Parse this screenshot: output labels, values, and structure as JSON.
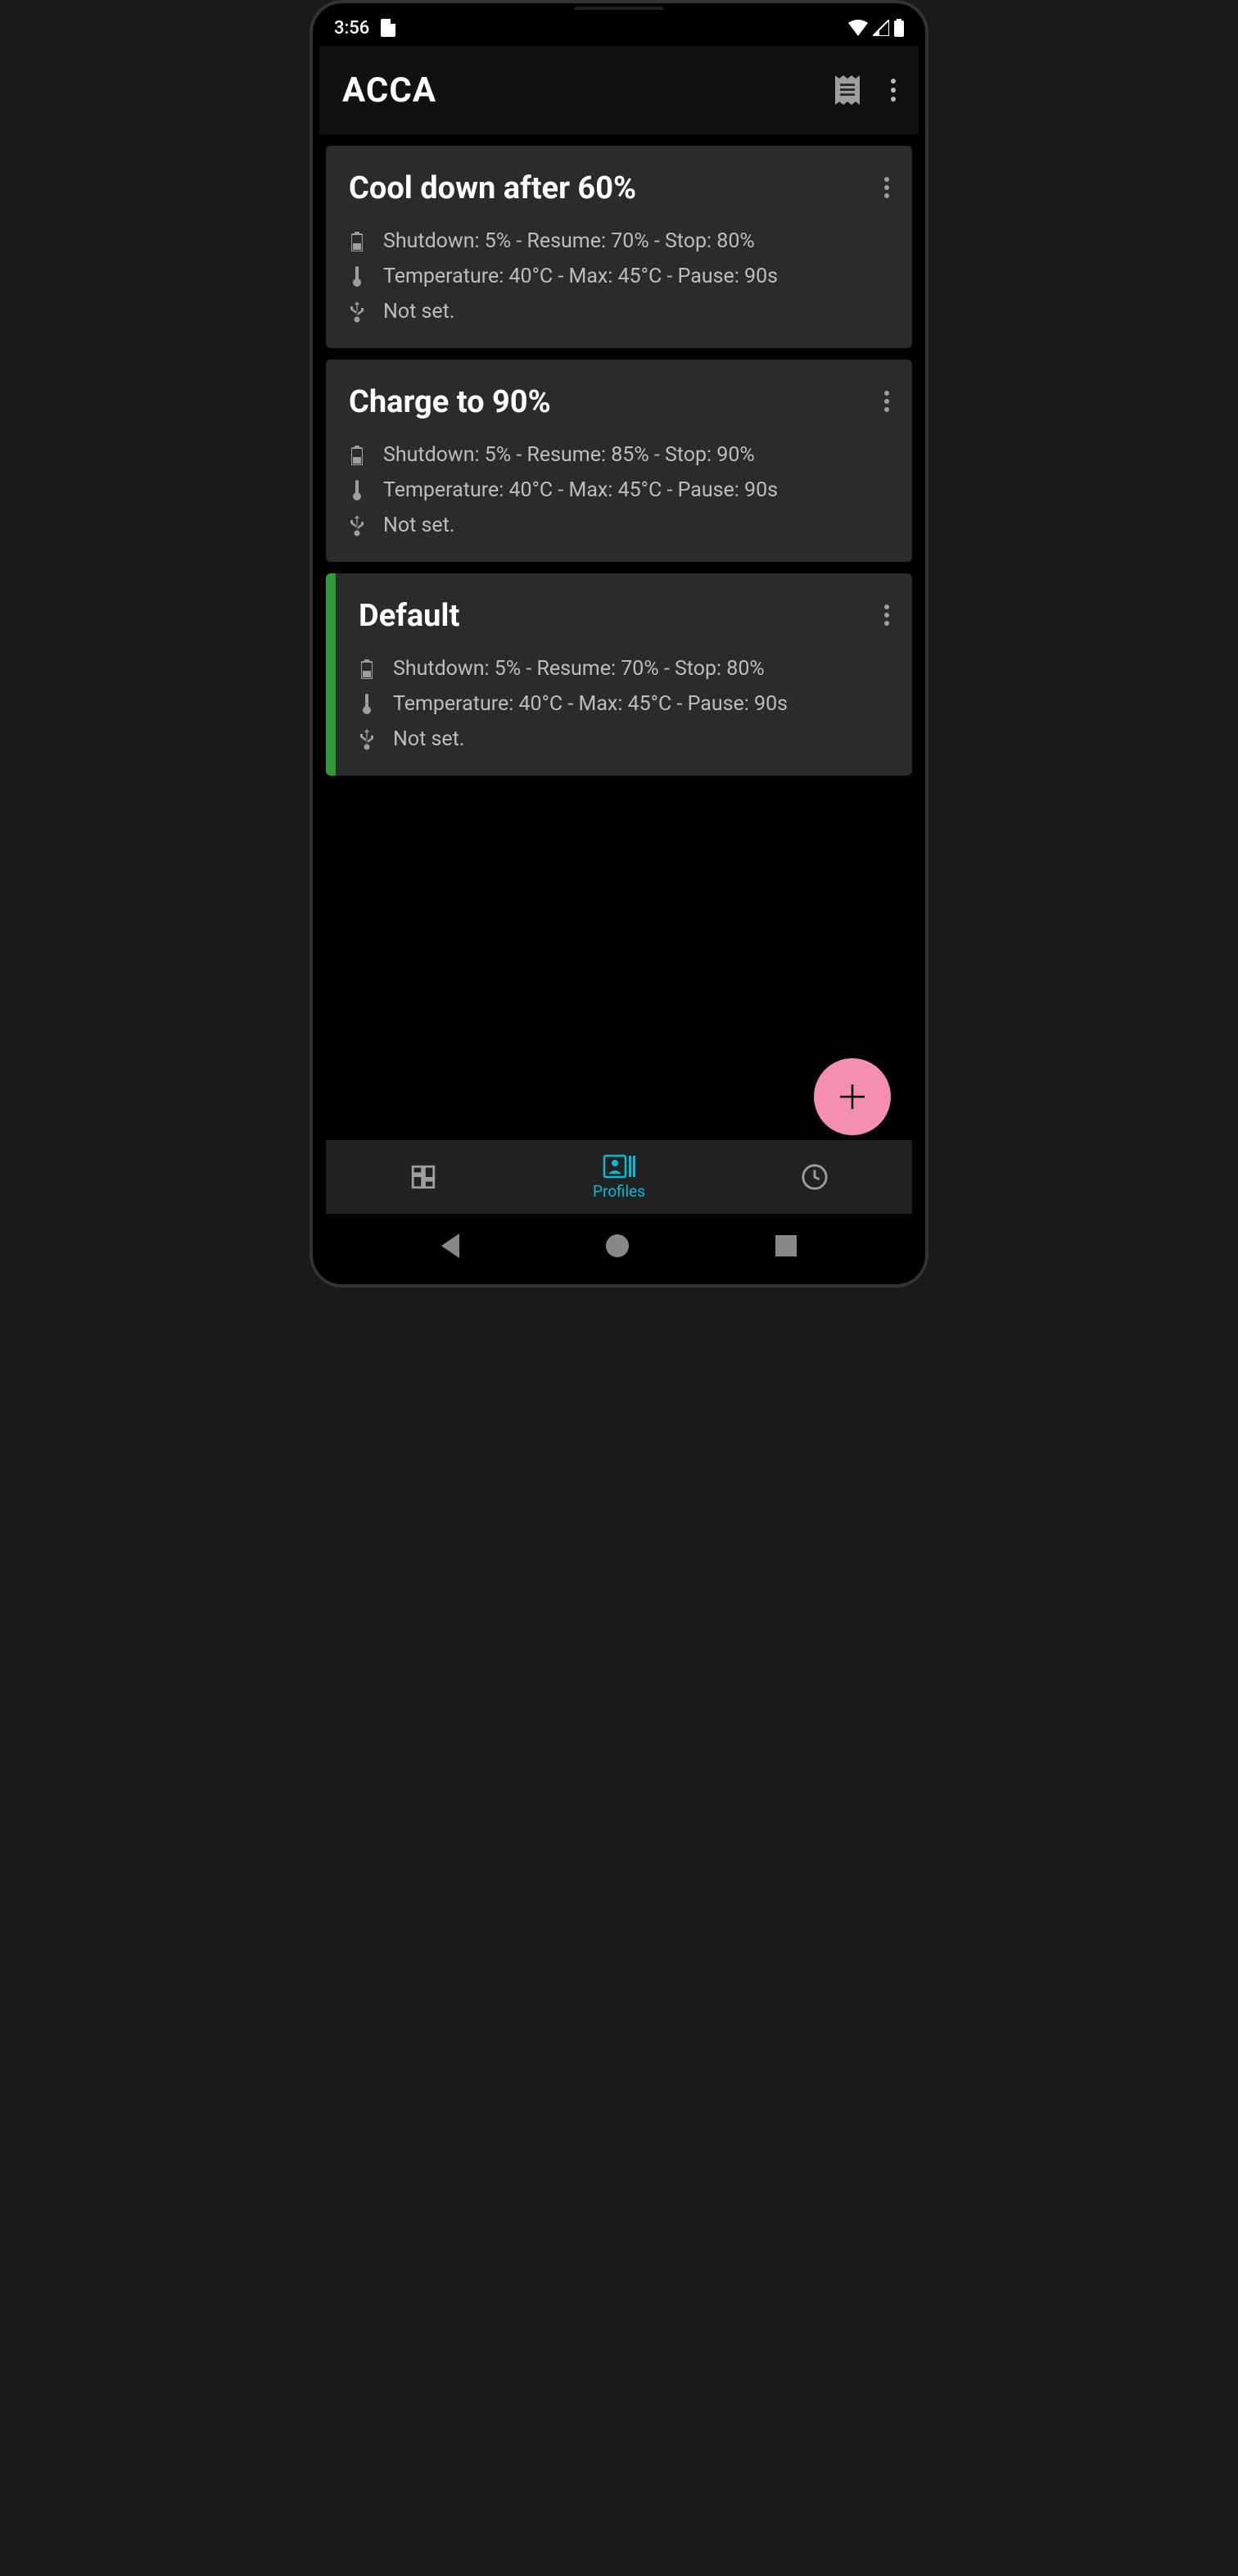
{
  "statusbar": {
    "time": "3:56"
  },
  "appbar": {
    "title": "ACCA"
  },
  "profiles": [
    {
      "title": "Cool down after 60%",
      "battery": "Shutdown: 5% - Resume: 70% - Stop: 80%",
      "temperature": "Temperature: 40°C - Max: 45°C - Pause: 90s",
      "usb": "Not set.",
      "active": false
    },
    {
      "title": "Charge to 90%",
      "battery": "Shutdown: 5% - Resume: 85% - Stop: 90%",
      "temperature": "Temperature: 40°C - Max: 45°C - Pause: 90s",
      "usb": "Not set.",
      "active": false
    },
    {
      "title": "Default",
      "battery": "Shutdown: 5% - Resume: 70% - Stop: 80%",
      "temperature": "Temperature: 40°C - Max: 45°C - Pause: 90s",
      "usb": "Not set.",
      "active": true
    }
  ],
  "bottomnav": {
    "profiles_label": "Profiles"
  },
  "colors": {
    "card_bg": "#2b2b2b",
    "active_accent": "#2e9a3a",
    "fab": "#f48fb1",
    "primary_text": "#ffffff",
    "secondary_text": "#bdbdbd",
    "nav_active": "#00bcd4"
  }
}
